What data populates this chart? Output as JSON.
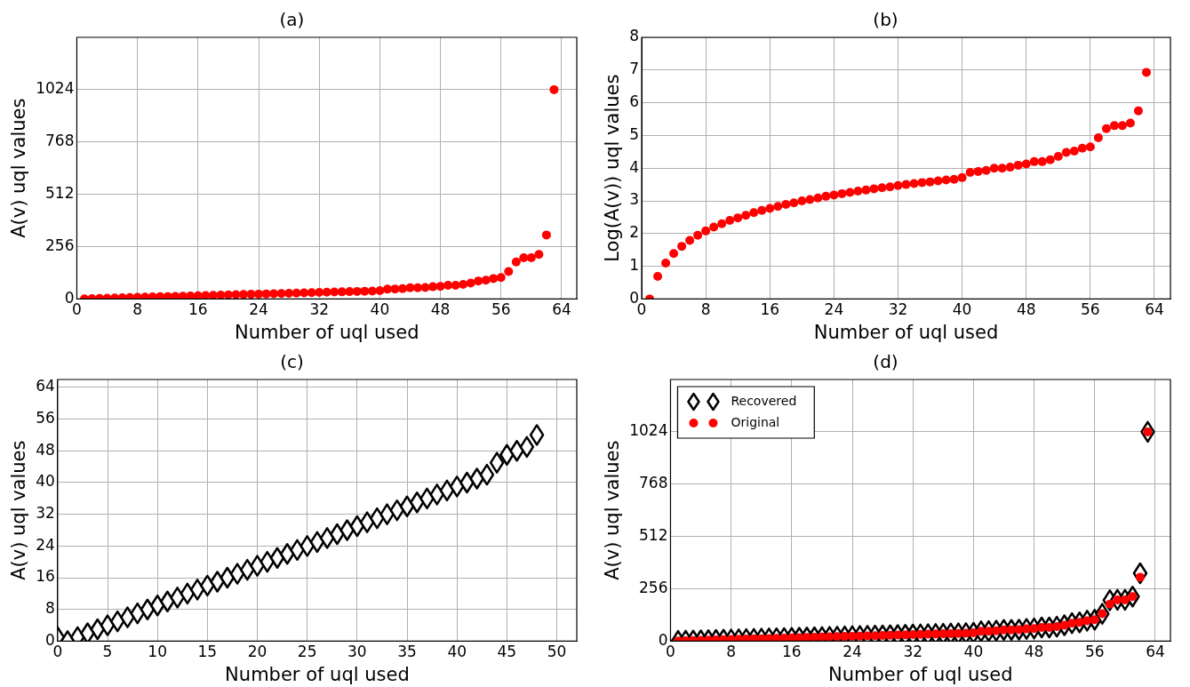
{
  "chart_data": [
    {
      "type": "scatter",
      "title": "(a)",
      "xlabel": "Number of uql used",
      "ylabel": "A(v) uql values",
      "x": [
        1,
        2,
        3,
        4,
        5,
        6,
        7,
        8,
        9,
        10,
        11,
        12,
        13,
        14,
        15,
        16,
        17,
        18,
        19,
        20,
        21,
        22,
        23,
        24,
        25,
        26,
        27,
        28,
        29,
        30,
        31,
        32,
        33,
        34,
        35,
        36,
        37,
        38,
        39,
        40,
        41,
        42,
        43,
        44,
        45,
        46,
        47,
        48,
        49,
        50,
        51,
        52,
        53,
        54,
        55,
        56,
        57,
        58,
        59,
        60,
        61,
        62,
        63
      ],
      "series": [
        {
          "color": "#ff0000",
          "values": [
            1,
            2,
            3,
            4,
            5,
            6,
            7,
            8,
            9,
            10,
            11,
            12,
            13,
            14,
            15,
            16,
            17,
            18,
            19,
            20,
            21,
            22,
            23,
            24,
            25,
            26,
            27,
            28,
            29,
            30,
            31,
            32,
            33,
            34,
            35,
            36,
            37,
            38,
            39,
            41,
            48,
            49,
            51,
            55,
            55,
            56,
            60,
            62,
            67,
            67,
            71,
            78,
            88,
            92,
            100,
            105,
            134,
            181,
            202,
            202,
            218,
            313,
            1024
          ]
        }
      ],
      "marker": "circle",
      "xlim": [
        0,
        66
      ],
      "ylim": [
        0,
        1280
      ],
      "xticks": [
        0,
        8,
        16,
        24,
        32,
        40,
        48,
        56,
        64
      ],
      "yticks": [
        0,
        256,
        512,
        768,
        1024
      ],
      "grid": true
    },
    {
      "type": "scatter",
      "title": "(b)",
      "xlabel": "Number of uql used",
      "ylabel": "Log(A(v)) uql values",
      "x": [
        1,
        2,
        3,
        4,
        5,
        6,
        7,
        8,
        9,
        10,
        11,
        12,
        13,
        14,
        15,
        16,
        17,
        18,
        19,
        20,
        21,
        22,
        23,
        24,
        25,
        26,
        27,
        28,
        29,
        30,
        31,
        32,
        33,
        34,
        35,
        36,
        37,
        38,
        39,
        40,
        41,
        42,
        43,
        44,
        45,
        46,
        47,
        48,
        49,
        50,
        51,
        52,
        53,
        54,
        55,
        56,
        57,
        58,
        59,
        60,
        61,
        62,
        63
      ],
      "series": [
        {
          "color": "#ff0000",
          "values": [
            0,
            0.69,
            1.1,
            1.39,
            1.61,
            1.79,
            1.95,
            2.08,
            2.2,
            2.3,
            2.4,
            2.48,
            2.56,
            2.64,
            2.71,
            2.77,
            2.83,
            2.89,
            2.94,
            3.0,
            3.04,
            3.09,
            3.14,
            3.18,
            3.22,
            3.26,
            3.3,
            3.33,
            3.37,
            3.4,
            3.43,
            3.47,
            3.5,
            3.53,
            3.56,
            3.58,
            3.61,
            3.64,
            3.66,
            3.71,
            3.87,
            3.9,
            3.93,
            4.0,
            4.0,
            4.03,
            4.09,
            4.13,
            4.2,
            4.2,
            4.26,
            4.36,
            4.48,
            4.52,
            4.61,
            4.65,
            4.93,
            5.21,
            5.3,
            5.3,
            5.38,
            5.75,
            6.93
          ]
        }
      ],
      "marker": "circle",
      "xlim": [
        0,
        66
      ],
      "ylim": [
        0,
        8
      ],
      "xticks": [
        0,
        8,
        16,
        24,
        32,
        40,
        48,
        56,
        64
      ],
      "yticks": [
        0,
        1,
        2,
        3,
        4,
        5,
        6,
        7,
        8
      ],
      "grid": true
    },
    {
      "type": "scatter",
      "title": "(c)",
      "xlabel": "Number of uql used",
      "ylabel": "A(v) uql values",
      "x": [
        0,
        1,
        2,
        3,
        4,
        5,
        6,
        7,
        8,
        9,
        10,
        11,
        12,
        13,
        14,
        15,
        16,
        17,
        18,
        19,
        20,
        21,
        22,
        23,
        24,
        25,
        26,
        27,
        28,
        29,
        30,
        31,
        32,
        33,
        34,
        35,
        36,
        37,
        38,
        39,
        40,
        41,
        42,
        43,
        44,
        45,
        46,
        47,
        48
      ],
      "series": [
        {
          "color": "#000000",
          "values": [
            1,
            0,
            1,
            2,
            3,
            4,
            5,
            6,
            7,
            8,
            9,
            10,
            11,
            12,
            13,
            14,
            15,
            16,
            17,
            18,
            19,
            20,
            21,
            22,
            23,
            24,
            25,
            26,
            27,
            28,
            29,
            30,
            31,
            32,
            33,
            34,
            35,
            36,
            37,
            38,
            39,
            40,
            41,
            42,
            45,
            47,
            48,
            49,
            52
          ]
        }
      ],
      "marker": "diamond",
      "xlim": [
        0,
        52
      ],
      "ylim": [
        0,
        66
      ],
      "xticks": [
        0,
        5,
        10,
        15,
        20,
        25,
        30,
        35,
        40,
        45,
        50
      ],
      "yticks": [
        0,
        8,
        16,
        24,
        32,
        40,
        48,
        56,
        64
      ],
      "grid": true
    },
    {
      "type": "scatter",
      "title": "(d)",
      "xlabel": "Number of uql used",
      "ylabel": "A(v) uql values",
      "x": [
        1,
        2,
        3,
        4,
        5,
        6,
        7,
        8,
        9,
        10,
        11,
        12,
        13,
        14,
        15,
        16,
        17,
        18,
        19,
        20,
        21,
        22,
        23,
        24,
        25,
        26,
        27,
        28,
        29,
        30,
        31,
        32,
        33,
        34,
        35,
        36,
        37,
        38,
        39,
        40,
        41,
        42,
        43,
        44,
        45,
        46,
        47,
        48,
        49,
        50,
        51,
        52,
        53,
        54,
        55,
        56,
        57,
        58,
        59,
        60,
        61,
        62,
        63
      ],
      "series": [
        {
          "name": "Recovered",
          "color": "#000000",
          "marker": "diamond",
          "values": [
            1,
            2,
            3,
            4,
            5,
            6,
            7,
            8,
            9,
            10,
            11,
            12,
            13,
            14,
            15,
            16,
            17,
            18,
            19,
            20,
            21,
            22,
            23,
            24,
            25,
            26,
            27,
            28,
            29,
            30,
            31,
            32,
            33,
            34,
            35,
            36,
            37,
            38,
            39,
            41,
            48,
            49,
            51,
            55,
            55,
            56,
            60,
            62,
            67,
            67,
            71,
            78,
            88,
            92,
            100,
            105,
            134,
            200,
            202,
            202,
            218,
            332,
            1024
          ]
        },
        {
          "name": "Original",
          "color": "#ff0000",
          "marker": "circle",
          "values": [
            1,
            2,
            3,
            4,
            5,
            6,
            7,
            8,
            9,
            10,
            11,
            12,
            13,
            14,
            15,
            16,
            17,
            18,
            19,
            20,
            21,
            22,
            23,
            24,
            25,
            26,
            27,
            28,
            29,
            30,
            31,
            32,
            33,
            34,
            35,
            36,
            37,
            38,
            39,
            41,
            48,
            49,
            51,
            55,
            55,
            56,
            60,
            62,
            67,
            67,
            71,
            78,
            88,
            92,
            100,
            105,
            134,
            181,
            202,
            202,
            218,
            313,
            1024
          ]
        }
      ],
      "xlim": [
        0,
        66
      ],
      "ylim": [
        0,
        1280
      ],
      "xticks": [
        0,
        8,
        16,
        24,
        32,
        40,
        48,
        56,
        64
      ],
      "yticks": [
        0,
        256,
        512,
        768,
        1024
      ],
      "grid": true,
      "legend": "top left"
    }
  ]
}
